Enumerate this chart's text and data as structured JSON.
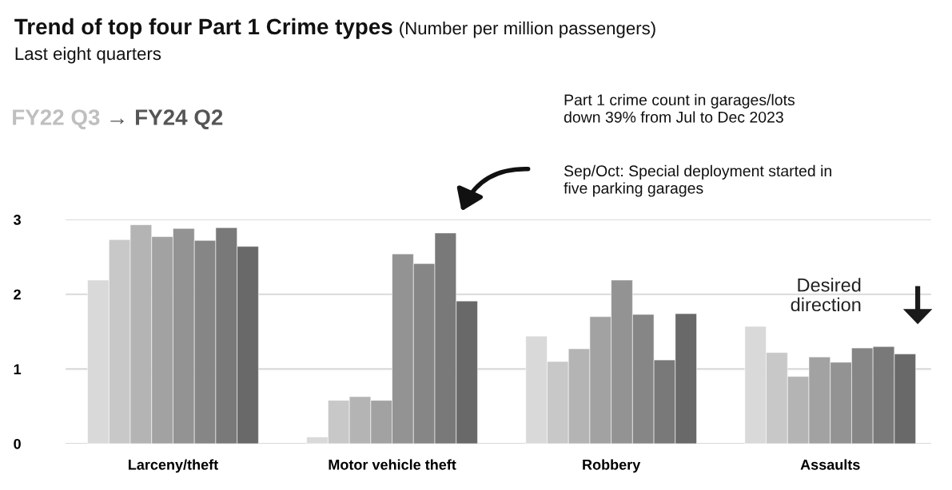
{
  "chart_data": {
    "type": "bar",
    "title": "Trend of top four Part 1 Crime types",
    "subtitle": "Last eight quarters",
    "annotations": [
      "(Number per million passengers)",
      "FY22 Q3",
      "→ FY24 Q2",
      "Part 1 crime count in garages/lots\ndown 39% from Jul to Dec 2023",
      "Sep/Oct: Special deployment started in\nfive parking garages",
      "Desired\ndirection"
    ],
    "categories": [
      "Larceny/theft",
      "Motor vehicle theft",
      "Robbery",
      "Assaults"
    ],
    "series": [
      {
        "color": "#d9d9d9",
        "values": [
          2.19,
          0.09,
          1.44,
          1.57
        ]
      },
      {
        "color": "#c8c8c8",
        "values": [
          2.73,
          0.58,
          1.1,
          1.22
        ]
      },
      {
        "color": "#b4b4b4",
        "values": [
          2.93,
          0.63,
          1.27,
          0.9
        ]
      },
      {
        "color": "#a2a2a2",
        "values": [
          2.77,
          0.58,
          1.7,
          1.16
        ]
      },
      {
        "color": "#939393",
        "values": [
          2.88,
          2.54,
          2.19,
          1.09
        ]
      },
      {
        "color": "#868686",
        "values": [
          2.72,
          2.41,
          1.73,
          1.28
        ]
      },
      {
        "color": "#797979",
        "values": [
          2.89,
          2.82,
          1.12,
          1.3
        ]
      },
      {
        "color": "#696969",
        "values": [
          2.64,
          1.91,
          1.74,
          1.2
        ]
      }
    ],
    "ylim": [
      0,
      3
    ],
    "yticks": [
      0,
      1,
      2,
      3
    ],
    "grid": "y",
    "legend": false
  }
}
